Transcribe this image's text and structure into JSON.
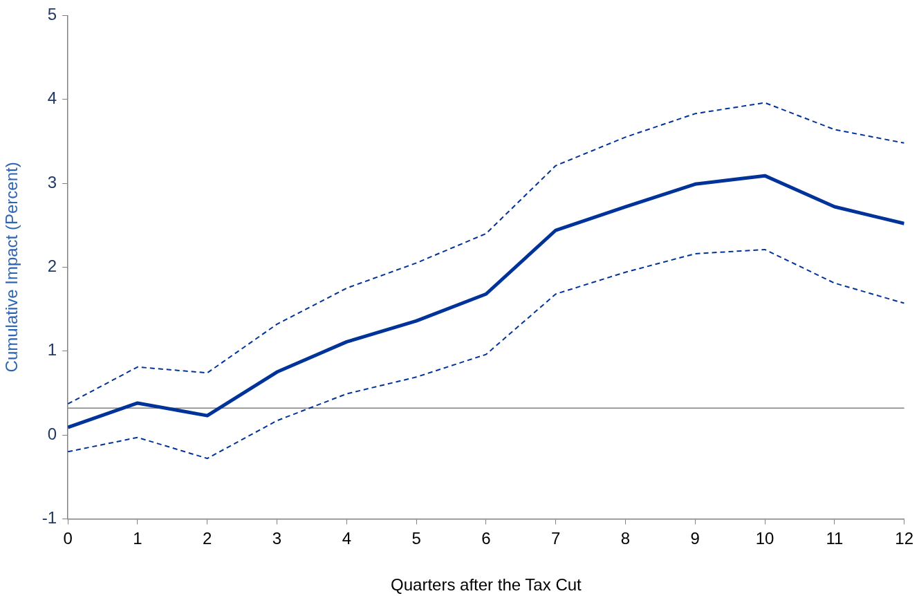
{
  "chart_data": {
    "type": "line",
    "xlabel": "Quarters after the Tax Cut",
    "ylabel": "Cumulative Impact (Percent)",
    "x": [
      0,
      1,
      2,
      3,
      4,
      5,
      6,
      7,
      8,
      9,
      10,
      11,
      12
    ],
    "series": [
      {
        "color": "#003399",
        "line_style": "solid",
        "values": [
          0.09,
          0.38,
          0.23,
          0.75,
          1.11,
          1.36,
          1.68,
          2.44,
          2.72,
          2.99,
          3.09,
          2.72,
          2.52
        ]
      },
      {
        "color": "#003399",
        "line_style": "dashed",
        "values": [
          0.37,
          0.81,
          0.74,
          1.32,
          1.75,
          2.05,
          2.4,
          3.21,
          3.55,
          3.83,
          3.96,
          3.64,
          3.48
        ]
      },
      {
        "color": "#003399",
        "line_style": "dashed",
        "values": [
          -0.2,
          -0.03,
          -0.28,
          0.17,
          0.49,
          0.69,
          0.96,
          1.68,
          1.94,
          2.16,
          2.21,
          1.81,
          1.57
        ]
      }
    ],
    "xlim": [
      0,
      12
    ],
    "xticks": [
      0,
      1,
      2,
      3,
      4,
      5,
      6,
      7,
      8,
      9,
      10,
      11,
      12
    ],
    "ylim": [
      -1,
      5
    ],
    "yticks": [
      -1,
      0,
      1,
      2,
      3,
      4,
      5
    ],
    "ref_lines": [
      {
        "axis": "y",
        "value": 0.32,
        "color": "#808080"
      }
    ],
    "grid": false,
    "legend": false,
    "marker": "none"
  }
}
